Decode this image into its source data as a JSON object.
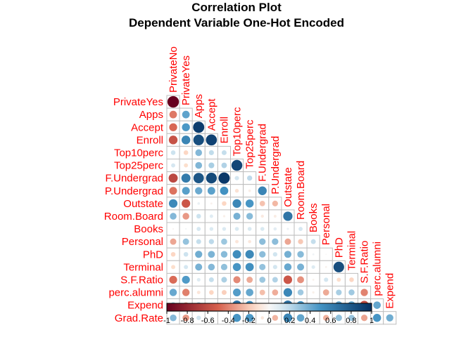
{
  "chart_data": {
    "type": "heatmap",
    "title": "Correlation Plot",
    "subtitle": "Dependent Variable One-Hot Encoded",
    "shape": "lower-triangle circles",
    "row_labels": [
      "PrivateYes",
      "Apps",
      "Accept",
      "Enroll",
      "Top10perc",
      "Top25perc",
      "F.Undergrad",
      "P.Undergrad",
      "Outstate",
      "Room.Board",
      "Books",
      "Personal",
      "PhD",
      "Terminal",
      "S.F.Ratio",
      "perc.alumni",
      "Expend",
      "Grad.Rate"
    ],
    "col_labels": [
      "PrivateNo",
      "PrivateYes",
      "Apps",
      "Accept",
      "Enroll",
      "Top10perc",
      "Top25perc",
      "F.Undergrad",
      "P.Undergrad",
      "Outstate",
      "Room.Board",
      "Books",
      "Personal",
      "PhD",
      "Terminal",
      "S.F.Ratio",
      "perc.alumni",
      "Expend"
    ],
    "matrix": [
      [
        -1.0
      ],
      [
        -0.43,
        0.43
      ],
      [
        -0.48,
        0.48,
        0.94
      ],
      [
        -0.57,
        0.57,
        0.85,
        0.91
      ],
      [
        0.16,
        -0.16,
        0.34,
        0.19,
        0.18
      ],
      [
        0.13,
        -0.13,
        0.35,
        0.25,
        0.23,
        0.89
      ],
      [
        -0.62,
        0.62,
        0.81,
        0.87,
        0.96,
        0.14,
        0.2
      ],
      [
        -0.45,
        0.45,
        0.4,
        0.44,
        0.51,
        -0.11,
        -0.05,
        0.57
      ],
      [
        0.55,
        -0.55,
        0.05,
        -0.03,
        -0.16,
        0.56,
        0.49,
        -0.22,
        -0.25
      ],
      [
        0.34,
        -0.34,
        0.16,
        0.09,
        -0.04,
        0.37,
        0.33,
        -0.07,
        -0.06,
        0.65
      ],
      [
        -0.02,
        0.02,
        0.13,
        0.11,
        0.11,
        0.12,
        0.12,
        0.12,
        0.08,
        0.04,
        0.13
      ],
      [
        -0.3,
        0.3,
        0.18,
        0.2,
        0.28,
        -0.09,
        -0.08,
        0.32,
        0.32,
        -0.3,
        -0.2,
        0.18
      ],
      [
        -0.16,
        0.16,
        0.39,
        0.36,
        0.33,
        0.53,
        0.55,
        0.32,
        0.15,
        0.38,
        0.33,
        0.03,
        -0.01
      ],
      [
        -0.13,
        0.13,
        0.37,
        0.34,
        0.31,
        0.49,
        0.52,
        0.3,
        0.14,
        0.41,
        0.37,
        0.1,
        -0.03,
        0.85
      ],
      [
        -0.47,
        0.47,
        0.1,
        0.18,
        0.24,
        -0.38,
        -0.29,
        0.28,
        0.23,
        -0.55,
        -0.36,
        -0.03,
        0.14,
        -0.13,
        -0.16
      ],
      [
        0.41,
        -0.41,
        -0.09,
        -0.16,
        -0.18,
        0.46,
        0.42,
        -0.23,
        -0.28,
        0.56,
        0.27,
        -0.04,
        -0.29,
        0.25,
        0.27,
        -0.4
      ],
      [
        0.26,
        -0.26,
        0.26,
        0.12,
        0.06,
        0.66,
        0.53,
        0.02,
        -0.08,
        0.67,
        0.5,
        0.11,
        -0.1,
        0.43,
        0.44,
        -0.58,
        0.42
      ],
      [
        0.34,
        -0.34,
        0.15,
        0.07,
        -0.02,
        0.49,
        0.48,
        -0.08,
        -0.26,
        0.57,
        0.42,
        0.0,
        -0.27,
        0.31,
        0.29,
        -0.31,
        0.49,
        0.39
      ]
    ],
    "colorbar": {
      "ticks": [
        "-1",
        "-0.8",
        "-0.6",
        "-0.4",
        "-0.2",
        "0",
        "0.2",
        "0.4",
        "0.6",
        "0.8",
        "1"
      ],
      "range": [
        -1,
        1
      ]
    },
    "colors": {
      "label": "#ff0000",
      "neg_end": "#67001f",
      "neg_mid": "#d6604d",
      "neg_light": "#fddbc7",
      "zero": "#f7f7f7",
      "pos_light": "#d1e5f0",
      "pos_mid": "#4393c3",
      "pos_end": "#053061",
      "grid": "#bdbdbd"
    }
  }
}
